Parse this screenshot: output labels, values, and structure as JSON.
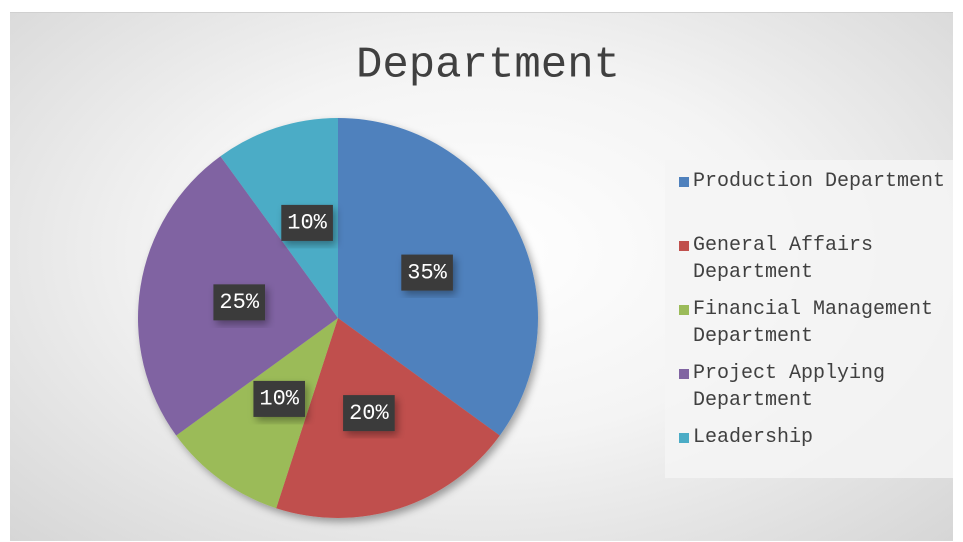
{
  "chart_data": {
    "type": "pie",
    "title": "Department",
    "categories": [
      "Production Department",
      "General Affairs Department",
      "Financial Management Department",
      "Project Applying Department",
      "Leadership"
    ],
    "values": [
      35,
      20,
      10,
      25,
      10
    ],
    "value_labels": [
      "35%",
      "20%",
      "10%",
      "25%",
      "10%"
    ],
    "colors": [
      "#4f81bd",
      "#c0504d",
      "#9bbb59",
      "#8064a2",
      "#4bacc6"
    ],
    "legend": "right"
  }
}
